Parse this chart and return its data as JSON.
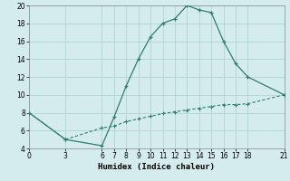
{
  "xlabel": "Humidex (Indice chaleur)",
  "line1_x": [
    0,
    3,
    6,
    7,
    8,
    9,
    10,
    11,
    12,
    13,
    14,
    15,
    16,
    17,
    18,
    21
  ],
  "line1_y": [
    8,
    5,
    4.3,
    7.5,
    11,
    14,
    16.5,
    18,
    18.5,
    20,
    19.5,
    19.2,
    16,
    13.5,
    12,
    10
  ],
  "line2_x": [
    0,
    3,
    6,
    7,
    8,
    9,
    10,
    11,
    12,
    13,
    14,
    15,
    16,
    17,
    18,
    21
  ],
  "line2_y": [
    8,
    5,
    6.3,
    6.5,
    7.0,
    7.3,
    7.6,
    7.9,
    8.1,
    8.3,
    8.5,
    8.7,
    8.9,
    8.9,
    9.0,
    10
  ],
  "line_color": "#2e7d6e",
  "bg_color": "#d4ecec",
  "grid_color": "#b0d4d4",
  "xlim": [
    0,
    21
  ],
  "ylim": [
    4,
    20
  ],
  "xticks": [
    0,
    3,
    6,
    7,
    8,
    9,
    10,
    11,
    12,
    13,
    14,
    15,
    16,
    17,
    18,
    21
  ],
  "yticks": [
    4,
    6,
    8,
    10,
    12,
    14,
    16,
    18,
    20
  ],
  "tick_fontsize": 5.5,
  "xlabel_fontsize": 6.5
}
